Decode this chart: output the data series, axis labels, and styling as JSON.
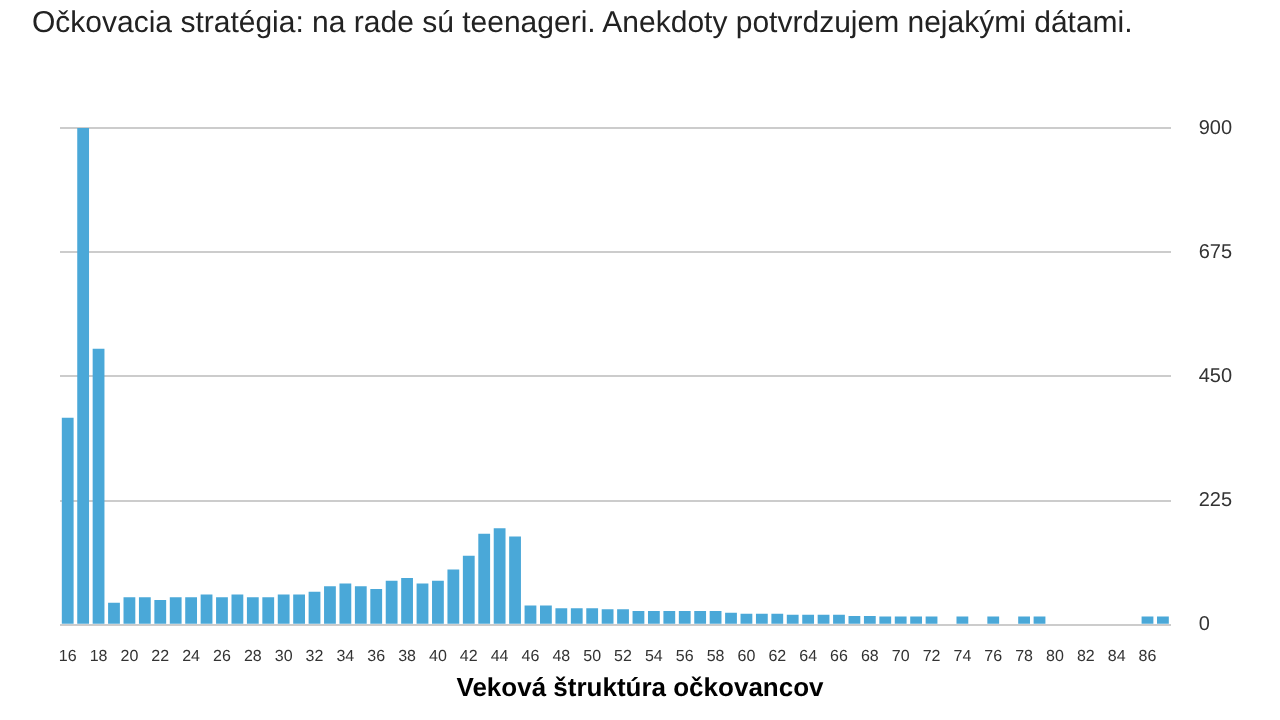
{
  "chart_data": {
    "type": "bar",
    "title": "Veková štruktúra očkovancov",
    "subtitle": "Očkovacia stratégia: na rade sú teenageri. Anekdoty potvrdzujem nejakými dátami.",
    "categories": [
      "16",
      null,
      "18",
      null,
      "20",
      null,
      "22",
      null,
      "24",
      null,
      "26",
      null,
      "28",
      null,
      "30",
      null,
      "32",
      null,
      "34",
      null,
      "36",
      null,
      "38",
      null,
      "40",
      null,
      "42",
      null,
      "44",
      null,
      "46",
      null,
      "48",
      null,
      "50",
      null,
      "52",
      null,
      "54",
      null,
      "56",
      null,
      "58",
      null,
      "60",
      null,
      "62",
      null,
      "64",
      null,
      "66",
      null,
      "68",
      null,
      "70",
      null,
      "72",
      null,
      "74",
      null,
      "76",
      null,
      "78",
      null,
      "80",
      null,
      "82",
      null,
      "84",
      null,
      "86",
      null
    ],
    "values": [
      375,
      900,
      500,
      40,
      50,
      50,
      45,
      50,
      50,
      55,
      50,
      55,
      50,
      50,
      55,
      55,
      60,
      70,
      75,
      70,
      65,
      80,
      85,
      75,
      80,
      100,
      125,
      165,
      175,
      160,
      35,
      35,
      30,
      30,
      30,
      28,
      28,
      25,
      25,
      25,
      25,
      25,
      25,
      22,
      20,
      20,
      20,
      18,
      18,
      18,
      18,
      16,
      16,
      15,
      15,
      15,
      15,
      0,
      15,
      0,
      15,
      0,
      15,
      15,
      0,
      0,
      0,
      0,
      0,
      0,
      15,
      15
    ],
    "color": "#4aa8d8",
    "ylim": [
      0,
      900
    ],
    "yticks": [
      0,
      225,
      450,
      675,
      900
    ],
    "grid": "y"
  }
}
